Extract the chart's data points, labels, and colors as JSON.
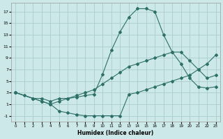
{
  "xlabel": "Humidex (Indice chaleur)",
  "background_color": "#cce8e8",
  "grid_color": "#aacccc",
  "line_color": "#2d7068",
  "xlim": [
    -0.5,
    23.5
  ],
  "ylim": [
    -2,
    18.5
  ],
  "xticks": [
    0,
    1,
    2,
    3,
    4,
    5,
    6,
    7,
    8,
    9,
    10,
    11,
    12,
    13,
    14,
    15,
    16,
    17,
    18,
    19,
    20,
    21,
    22,
    23
  ],
  "yticks": [
    -1,
    1,
    3,
    5,
    7,
    9,
    11,
    13,
    15,
    17
  ],
  "curve1_x": [
    0,
    1,
    2,
    3,
    4,
    5,
    6,
    7,
    8,
    9,
    10,
    11,
    12,
    13,
    14,
    15,
    16,
    17,
    18,
    19,
    20,
    21,
    22,
    23
  ],
  "curve1_y": [
    3.0,
    2.5,
    2.0,
    2.0,
    1.5,
    2.0,
    2.0,
    2.2,
    2.5,
    2.7,
    6.2,
    10.3,
    13.5,
    16.0,
    17.5,
    17.5,
    17.0,
    13.0,
    10.0,
    8.0,
    5.5,
    4.0,
    3.8,
    4.0
  ],
  "curve2_x": [
    0,
    2,
    3,
    4,
    5,
    6,
    7,
    8,
    9,
    10,
    11,
    12,
    13,
    14,
    15,
    16,
    17,
    18,
    19,
    20,
    21,
    22,
    23
  ],
  "curve2_y": [
    3.0,
    2.0,
    1.5,
    1.0,
    -0.2,
    -0.5,
    -0.8,
    -1.0,
    -1.0,
    -1.0,
    -1.0,
    -1.0,
    2.7,
    3.0,
    3.5,
    4.0,
    4.5,
    5.0,
    5.5,
    6.0,
    7.0,
    8.0,
    9.5
  ],
  "curve3_x": [
    0,
    2,
    3,
    4,
    5,
    6,
    7,
    8,
    9,
    10,
    11,
    12,
    13,
    14,
    15,
    16,
    17,
    18,
    19,
    20,
    21,
    22,
    23
  ],
  "curve3_y": [
    3.0,
    2.0,
    1.5,
    1.0,
    1.5,
    2.0,
    2.5,
    3.0,
    3.5,
    4.5,
    5.5,
    6.5,
    7.5,
    8.0,
    8.5,
    9.0,
    9.5,
    10.0,
    10.0,
    8.5,
    7.0,
    5.5,
    6.0
  ]
}
